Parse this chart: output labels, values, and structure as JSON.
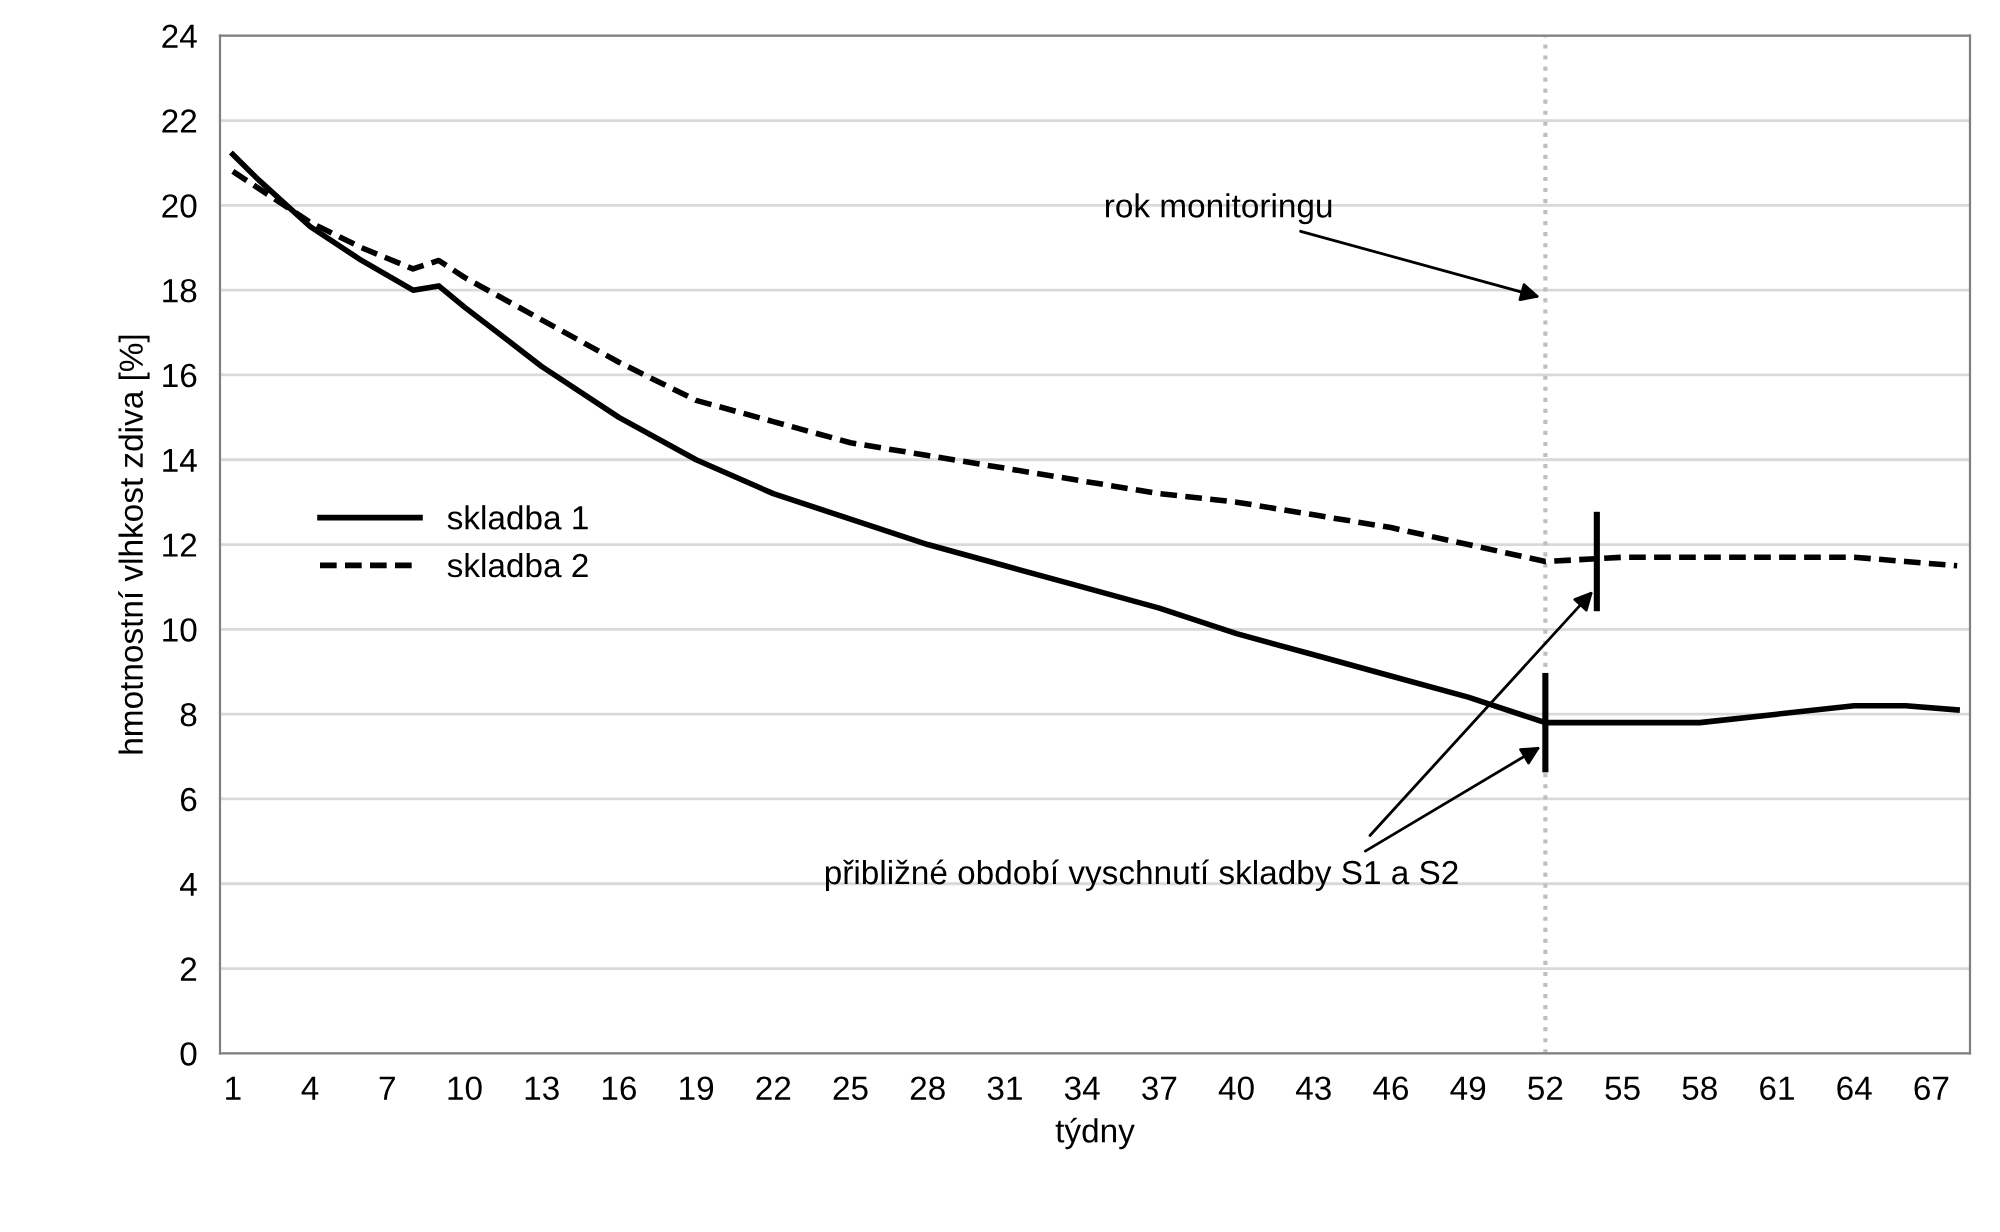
{
  "chart_data": {
    "type": "line",
    "xlabel": "týdny",
    "ylabel": "hmotnostní vlhkost zdiva [%]",
    "x": [
      1,
      2,
      4,
      6,
      8,
      9,
      10,
      13,
      16,
      19,
      22,
      25,
      28,
      31,
      34,
      37,
      40,
      43,
      46,
      49,
      52,
      55,
      58,
      61,
      64,
      66,
      68
    ],
    "series": [
      {
        "name": "skladba 1",
        "color": "#000000",
        "line_style": "solid",
        "values": [
          21.2,
          20.6,
          19.5,
          18.7,
          18.0,
          18.1,
          17.6,
          16.2,
          15.0,
          14.0,
          13.2,
          12.6,
          12.0,
          11.5,
          11.0,
          10.5,
          9.9,
          9.4,
          8.9,
          8.4,
          7.8,
          7.8,
          7.8,
          8.0,
          8.2,
          8.2,
          8.1
        ]
      },
      {
        "name": "skladba 2",
        "color": "#000000",
        "line_style": "dashed",
        "values": [
          20.8,
          20.4,
          19.6,
          19.0,
          18.5,
          18.7,
          18.3,
          17.3,
          16.3,
          15.4,
          14.9,
          14.4,
          14.1,
          13.8,
          13.5,
          13.2,
          13.0,
          12.7,
          12.4,
          12.0,
          11.6,
          11.7,
          11.7,
          11.7,
          11.7,
          11.6,
          11.5
        ]
      }
    ],
    "xlim": [
      0.5,
      68.5
    ],
    "xticks": [
      1,
      4,
      7,
      10,
      13,
      16,
      19,
      22,
      25,
      28,
      31,
      34,
      37,
      40,
      43,
      46,
      49,
      52,
      55,
      58,
      61,
      64,
      67
    ],
    "ylim": [
      0,
      24
    ],
    "yticks": [
      0,
      2,
      4,
      6,
      8,
      10,
      12,
      14,
      16,
      18,
      20,
      22,
      24
    ],
    "grid": "y",
    "legend": "center left",
    "marker": "none",
    "ref_lines": [
      {
        "axis": "x",
        "value": 52,
        "color": "#bfbfbf",
        "line_style": "dotted"
      }
    ],
    "annotations": [
      {
        "text": "rok monitoringu",
        "x": 52,
        "y": 17.8
      },
      {
        "text": "přibližné období vyschnutí skladby S1 a S2",
        "x": 52,
        "y": 7.3
      }
    ]
  }
}
